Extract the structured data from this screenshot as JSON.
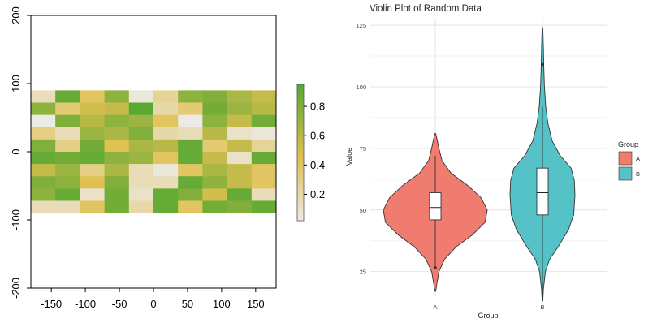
{
  "chart_data": [
    {
      "type": "heatmap",
      "title": "",
      "xlabel": "",
      "ylabel": "",
      "xlim": [
        -180,
        180
      ],
      "ylim": [
        -200,
        200
      ],
      "x_ticks": [
        -150,
        -100,
        -50,
        0,
        50,
        100,
        150
      ],
      "y_ticks": [
        -200,
        -100,
        0,
        100,
        200
      ],
      "cell_x_range": [
        -180,
        180
      ],
      "cell_y_range": [
        -90,
        90
      ],
      "columns": 10,
      "rows": 10,
      "values_top_to_bottom": [
        [
          0.15,
          0.9,
          0.4,
          0.75,
          0.05,
          0.25,
          0.75,
          0.8,
          0.65,
          0.55
        ],
        [
          0.75,
          0.35,
          0.5,
          0.55,
          0.95,
          0.2,
          0.35,
          0.85,
          0.7,
          0.6
        ],
        [
          0.02,
          0.8,
          0.6,
          0.75,
          0.7,
          0.4,
          0.02,
          0.75,
          0.55,
          0.85
        ],
        [
          0.3,
          0.15,
          0.7,
          0.65,
          0.8,
          0.2,
          0.15,
          0.6,
          0.1,
          0.05
        ],
        [
          0.8,
          0.3,
          0.85,
          0.45,
          0.65,
          0.6,
          0.9,
          0.35,
          0.55,
          0.25
        ],
        [
          0.9,
          0.85,
          0.9,
          0.75,
          0.7,
          0.4,
          0.9,
          0.55,
          0.1,
          0.9
        ],
        [
          0.55,
          0.7,
          0.3,
          0.65,
          0.15,
          0.05,
          0.4,
          0.65,
          0.55,
          0.4
        ],
        [
          0.8,
          0.75,
          0.45,
          0.8,
          0.15,
          0.15,
          0.9,
          0.75,
          0.55,
          0.4
        ],
        [
          0.75,
          0.9,
          0.1,
          0.85,
          0.1,
          0.9,
          0.8,
          0.5,
          0.9,
          0.15
        ],
        [
          0.15,
          0.15,
          0.4,
          0.85,
          0.2,
          0.9,
          0.4,
          0.85,
          0.8,
          0.9
        ]
      ],
      "color_scale": {
        "low": "#ececec",
        "mid": "#e0c050",
        "high": "#4aa62f"
      },
      "colorbar_range": [
        0.02,
        0.95
      ],
      "colorbar_ticks": [
        0.2,
        0.4,
        0.6,
        0.8
      ],
      "grid": false
    },
    {
      "type": "violin",
      "title": "Violin Plot of Random Data",
      "xlabel": "Group",
      "ylabel": "Value",
      "categories": [
        "A",
        "B"
      ],
      "ylim": [
        15,
        128
      ],
      "y_ticks": [
        25,
        50,
        75,
        100,
        125
      ],
      "grid": true,
      "legend": {
        "title": "Group",
        "placement": "right",
        "entries": [
          "A",
          "B"
        ]
      },
      "colors": {
        "A": "#f07c70",
        "B": "#55c2c8"
      },
      "series": [
        {
          "name": "A",
          "min": 17,
          "max": 81,
          "q1": 46,
          "median": 51,
          "q3": 57,
          "whisker_low": 27,
          "whisker_high": 72,
          "outliers": [
            26.5
          ],
          "density": [
            [
              17,
              0.01
            ],
            [
              20,
              0.03
            ],
            [
              25,
              0.07
            ],
            [
              30,
              0.18
            ],
            [
              35,
              0.4
            ],
            [
              40,
              0.72
            ],
            [
              45,
              0.96
            ],
            [
              50,
              1.0
            ],
            [
              55,
              0.88
            ],
            [
              60,
              0.62
            ],
            [
              65,
              0.3
            ],
            [
              70,
              0.13
            ],
            [
              75,
              0.07
            ],
            [
              78,
              0.04
            ],
            [
              81,
              0.01
            ]
          ]
        },
        {
          "name": "B",
          "min": 13,
          "max": 124,
          "q1": 48,
          "median": 57,
          "q3": 67,
          "whisker_low": 14,
          "whisker_high": 92,
          "outliers": [
            109
          ],
          "density": [
            [
              13,
              0.01
            ],
            [
              18,
              0.03
            ],
            [
              25,
              0.09
            ],
            [
              30,
              0.22
            ],
            [
              35,
              0.48
            ],
            [
              42,
              0.8
            ],
            [
              48,
              0.96
            ],
            [
              56,
              1.0
            ],
            [
              62,
              0.98
            ],
            [
              67,
              0.88
            ],
            [
              72,
              0.55
            ],
            [
              78,
              0.3
            ],
            [
              85,
              0.17
            ],
            [
              92,
              0.1
            ],
            [
              100,
              0.06
            ],
            [
              108,
              0.04
            ],
            [
              115,
              0.03
            ],
            [
              120,
              0.02
            ],
            [
              124,
              0.01
            ]
          ]
        }
      ]
    }
  ]
}
